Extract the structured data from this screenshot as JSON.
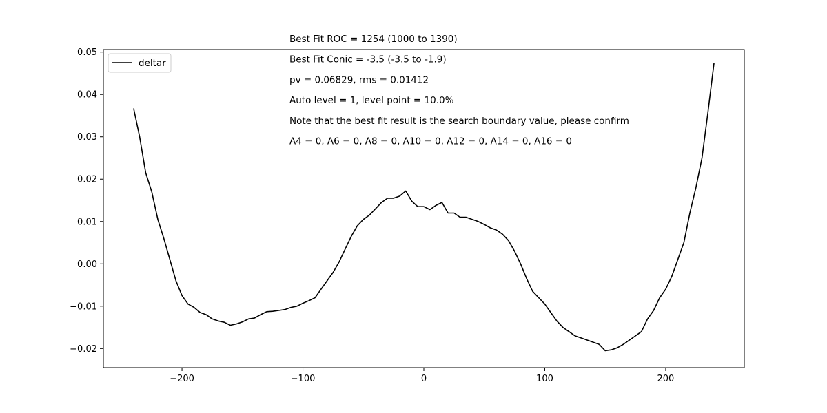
{
  "chart_data": {
    "type": "line",
    "title": "",
    "xlabel": "",
    "ylabel": "",
    "xlim": [
      -265,
      265
    ],
    "ylim": [
      -0.0245,
      0.0506
    ],
    "xticks": [
      -200,
      -100,
      0,
      100,
      200
    ],
    "xtick_labels": [
      "−200",
      "−100",
      "0",
      "100",
      "200"
    ],
    "yticks": [
      -0.02,
      -0.01,
      0.0,
      0.01,
      0.02,
      0.03,
      0.04,
      0.05
    ],
    "ytick_labels": [
      "−0.02",
      "−0.01",
      "0.00",
      "0.01",
      "0.02",
      "0.03",
      "0.04",
      "0.05"
    ],
    "grid": false,
    "legend": {
      "position": "top-left",
      "entries": [
        "deltar"
      ]
    },
    "annotations": [
      "Best Fit ROC = 1254  (1000 to 1390)",
      "Best Fit Conic = -3.5  (-3.5 to -1.9)",
      "pv = 0.06829, rms = 0.01412",
      "Auto level = 1, level point = 10.0%",
      "Note that the best fit result is the search boundary value, please confirm",
      "A4 = 0, A6 = 0, A8 = 0, A10 = 0, A12 = 0, A14 = 0, A16 = 0"
    ],
    "series": [
      {
        "name": "deltar",
        "color": "#000000",
        "x": [
          -240,
          -235,
          -230,
          -225,
          -220,
          -215,
          -210,
          -205,
          -200,
          -195,
          -190,
          -185,
          -180,
          -175,
          -170,
          -165,
          -160,
          -155,
          -150,
          -145,
          -140,
          -135,
          -130,
          -125,
          -120,
          -115,
          -110,
          -105,
          -100,
          -95,
          -90,
          -85,
          -80,
          -75,
          -70,
          -65,
          -60,
          -55,
          -50,
          -45,
          -40,
          -35,
          -30,
          -25,
          -20,
          -15,
          -10,
          -5,
          0,
          5,
          10,
          15,
          20,
          25,
          30,
          35,
          40,
          45,
          50,
          55,
          60,
          65,
          70,
          75,
          80,
          85,
          90,
          95,
          100,
          105,
          110,
          115,
          120,
          125,
          130,
          135,
          140,
          145,
          150,
          155,
          160,
          165,
          170,
          175,
          180,
          185,
          190,
          195,
          200,
          205,
          210,
          215,
          220,
          225,
          230,
          235,
          240
        ],
        "y": [
          0.0367,
          0.03,
          0.0215,
          0.017,
          0.0105,
          0.006,
          0.001,
          -0.004,
          -0.0075,
          -0.0095,
          -0.0103,
          -0.0115,
          -0.012,
          -0.013,
          -0.0135,
          -0.0138,
          -0.0145,
          -0.0142,
          -0.0137,
          -0.013,
          -0.0128,
          -0.012,
          -0.0113,
          -0.0112,
          -0.011,
          -0.0108,
          -0.0103,
          -0.01,
          -0.0093,
          -0.0087,
          -0.008,
          -0.006,
          -0.004,
          -0.002,
          0.0005,
          0.0035,
          0.0065,
          0.009,
          0.0105,
          0.0115,
          0.013,
          0.0145,
          0.0155,
          0.0155,
          0.016,
          0.0172,
          0.0148,
          0.0135,
          0.0135,
          0.0128,
          0.0138,
          0.0145,
          0.012,
          0.012,
          0.011,
          0.011,
          0.0105,
          0.01,
          0.0093,
          0.0085,
          0.008,
          0.007,
          0.0055,
          0.003,
          0.0,
          -0.0035,
          -0.0065,
          -0.008,
          -0.0095,
          -0.0115,
          -0.0135,
          -0.015,
          -0.016,
          -0.017,
          -0.0175,
          -0.018,
          -0.0185,
          -0.019,
          -0.0205,
          -0.0203,
          -0.0198,
          -0.019,
          -0.018,
          -0.017,
          -0.016,
          -0.013,
          -0.011,
          -0.008,
          -0.006,
          -0.003,
          0.001,
          0.005,
          0.012,
          0.018,
          0.025,
          0.036,
          0.0475
        ]
      }
    ]
  }
}
